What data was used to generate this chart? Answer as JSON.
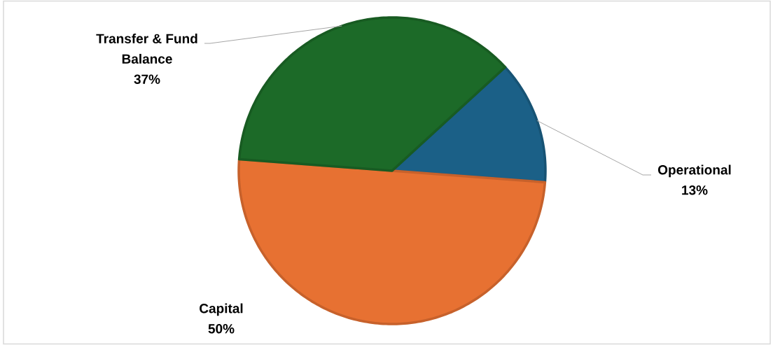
{
  "chart_data": {
    "type": "pie",
    "categories": [
      "Operational",
      "Capital",
      "Transfer & Fund Balance"
    ],
    "values": [
      13,
      50,
      37
    ],
    "colors": [
      "#1b6087",
      "#e77132",
      "#1c6a28"
    ],
    "value_labels": [
      "13%",
      "50%",
      "37%"
    ]
  }
}
